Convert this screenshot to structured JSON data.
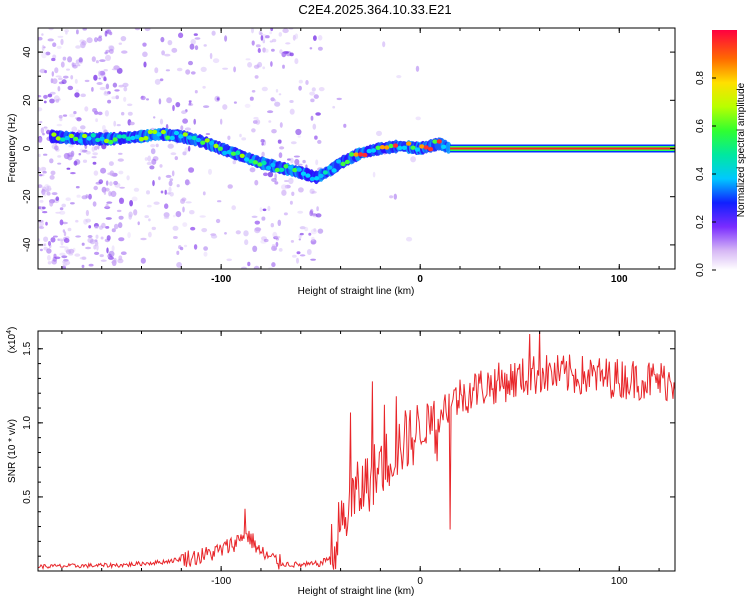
{
  "title": "C2E4.2025.364.10.33.E21",
  "chart_data": [
    {
      "type": "heatmap",
      "name": "spectrogram",
      "xlabel": "Height of straight line (km)",
      "ylabel": "Frequency (Hz)",
      "xlim": [
        -192,
        128
      ],
      "ylim": [
        -50,
        50
      ],
      "xticks": [
        -100,
        0,
        100
      ],
      "yticks": [
        -40,
        -20,
        0,
        20,
        40
      ],
      "colorbar": {
        "label": "Normalized spectral amplitude",
        "range": [
          0,
          1
        ],
        "ticks": [
          0.0,
          0.2,
          0.4,
          0.6,
          0.8
        ]
      },
      "ridge": {
        "x": [
          -185,
          -170,
          -155,
          -140,
          -130,
          -120,
          -110,
          -100,
          -90,
          -80,
          -70,
          -60,
          -52,
          -45,
          -40,
          -35,
          -30,
          -20,
          -10,
          0,
          10,
          15,
          128
        ],
        "y": [
          5,
          4,
          4,
          5,
          6,
          5,
          3,
          0,
          -3,
          -6,
          -8,
          -10,
          -12,
          -9,
          -6,
          -4,
          -2,
          0,
          1,
          0,
          2,
          0,
          0
        ]
      },
      "tone_line": {
        "x_start": 15,
        "x_end": 128,
        "y": 0
      }
    },
    {
      "type": "line",
      "name": "snr",
      "xlabel": "Height of straight line (km)",
      "ylabel": "SNR (10 * v/v)",
      "yscale_label": "(x10",
      "yscale_exp": "4",
      "yscale_close": ")",
      "xlim": [
        -192,
        128
      ],
      "ylim": [
        0,
        1.62
      ],
      "xticks": [
        -100,
        0,
        100
      ],
      "yticks": [
        0.5,
        1.0,
        1.5
      ],
      "ytick_labels": [
        "0.5",
        "1.0",
        "1.5"
      ],
      "color": "#e8262a",
      "envelope": {
        "x": [
          -192,
          -150,
          -130,
          -110,
          -100,
          -92,
          -88,
          -84,
          -80,
          -70,
          -60,
          -50,
          -45,
          -40,
          -35,
          -30,
          -20,
          -10,
          0,
          10,
          20,
          30,
          40,
          50,
          60,
          80,
          100,
          128
        ],
        "y": [
          0.03,
          0.04,
          0.06,
          0.1,
          0.14,
          0.2,
          0.26,
          0.2,
          0.12,
          0.05,
          0.04,
          0.05,
          0.1,
          0.3,
          0.45,
          0.55,
          0.7,
          0.85,
          0.95,
          1.08,
          1.18,
          1.24,
          1.27,
          1.3,
          1.33,
          1.32,
          1.3,
          1.28
        ]
      },
      "peaks": {
        "x": [
          -88,
          -35,
          -24,
          -12,
          15,
          55,
          60
        ],
        "y": [
          0.42,
          1.07,
          1.28,
          1.18,
          0.28,
          1.6,
          1.62
        ]
      }
    }
  ]
}
